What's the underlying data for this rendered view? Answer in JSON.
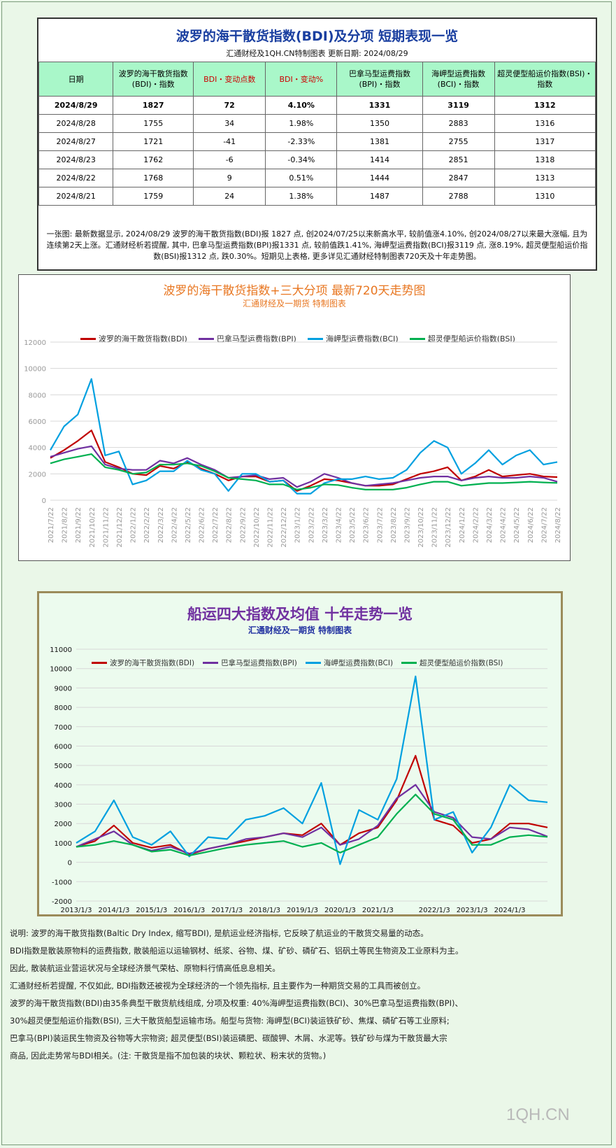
{
  "table": {
    "title": "波罗的海干散货指数(BDI)及分项 短期表现一览",
    "subtitle": "汇通财经及1QH.CN特制图表     更新日期: 2024/08/29",
    "headers": [
      "日期",
      "波罗的海干散货指数(BDI)・指数",
      "BDI・变动点数",
      "BDI・变动%",
      "巴拿马型运费指数(BPI)・指数",
      "海岬型运费指数(BCI)・指数",
      "超灵便型船运价指数(BSI)・指数"
    ],
    "rows": [
      [
        "2024/8/29",
        "1827",
        "72",
        "4.10%",
        "1331",
        "3119",
        "1312"
      ],
      [
        "2024/8/28",
        "1755",
        "34",
        "1.98%",
        "1350",
        "2883",
        "1316"
      ],
      [
        "2024/8/27",
        "1721",
        "-41",
        "-2.33%",
        "1381",
        "2755",
        "1317"
      ],
      [
        "2024/8/23",
        "1762",
        "-6",
        "-0.34%",
        "1414",
        "2851",
        "1318"
      ],
      [
        "2024/8/22",
        "1768",
        "9",
        "0.51%",
        "1444",
        "2847",
        "1313"
      ],
      [
        "2024/8/21",
        "1759",
        "24",
        "1.38%",
        "1487",
        "2788",
        "1310"
      ]
    ],
    "note": "一张图: 最新数据显示, 2024/08/29 波罗的海干散货指数(BDI)报 1827 点, 创2024/07/25以来新高水平, 较前值涨4.10%, 创2024/08/27以来最大涨幅, 且为连续第2天上涨。汇通财经析若提醒, 其中, 巴拿马型运费指数(BPI)报1331 点, 较前值跌1.41%, 海岬型运费指数(BCI)报3119 点, 涨8.19%, 超灵便型船运价指数(BSI)报1312 点, 跌0.30%。短期见上表格, 更多详见汇通财经特制图表720天及十年走势图。"
  },
  "chart_data": [
    {
      "type": "line",
      "title": "波罗的海干散货指数+三大分项 最新720天走势图",
      "subtitle": "汇通财经及一期货 特制图表",
      "x": [
        "2021/7/22",
        "2021/8/22",
        "2021/9/22",
        "2021/10/22",
        "2021/11/22",
        "2021/12/22",
        "2022/1/22",
        "2022/2/22",
        "2022/3/22",
        "2022/4/22",
        "2022/5/22",
        "2022/6/22",
        "2022/7/22",
        "2022/8/22",
        "2022/9/22",
        "2022/10/22",
        "2022/11/22",
        "2022/12/22",
        "2023/1/22",
        "2023/2/22",
        "2023/3/22",
        "2023/4/22",
        "2023/5/22",
        "2023/6/22",
        "2023/7/22",
        "2023/8/22",
        "2023/9/22",
        "2023/10/22",
        "2023/11/22",
        "2023/12/22",
        "2024/1/22",
        "2024/2/22",
        "2024/3/22",
        "2024/4/22",
        "2024/5/22",
        "2024/6/22",
        "2024/7/22",
        "2024/8/22"
      ],
      "ylim": [
        0,
        12000
      ],
      "yticks": [
        "0",
        "2000",
        "4000",
        "6000",
        "8000",
        "10000",
        "12000"
      ],
      "series": [
        {
          "name": "波罗的海干散货指数(BDI)",
          "color": "#c00000",
          "values": [
            3200,
            3800,
            4500,
            5300,
            2900,
            2500,
            2000,
            1900,
            2600,
            2400,
            2900,
            2400,
            2000,
            1500,
            1800,
            1800,
            1400,
            1500,
            700,
            1100,
            1600,
            1500,
            1300,
            1100,
            1100,
            1200,
            1600,
            2000,
            2200,
            2500,
            1500,
            1800,
            2300,
            1800,
            1900,
            2000,
            1800,
            1750
          ]
        },
        {
          "name": "巴拿马型运费指数(BPI)",
          "color": "#7030a0",
          "values": [
            3300,
            3600,
            3900,
            4100,
            2700,
            2400,
            2300,
            2300,
            3000,
            2800,
            3200,
            2700,
            2300,
            1700,
            1800,
            1900,
            1600,
            1700,
            1000,
            1400,
            2000,
            1700,
            1300,
            1100,
            1200,
            1300,
            1500,
            1700,
            1800,
            1800,
            1500,
            1700,
            1800,
            1700,
            1700,
            1800,
            1700,
            1400
          ]
        },
        {
          "name": "海岬型运费指数(BCI)",
          "color": "#00a0e0",
          "values": [
            3800,
            5600,
            6500,
            9200,
            3400,
            3700,
            1200,
            1500,
            2200,
            2200,
            3000,
            2300,
            2000,
            700,
            2000,
            2000,
            1400,
            1500,
            500,
            500,
            1300,
            1600,
            1600,
            1800,
            1600,
            1700,
            2300,
            3600,
            4500,
            4000,
            2000,
            2800,
            3800,
            2700,
            3400,
            3800,
            2700,
            2900
          ]
        },
        {
          "name": "超灵便型船运价指数(BSI)",
          "color": "#00b050",
          "values": [
            2800,
            3100,
            3300,
            3500,
            2500,
            2300,
            2000,
            2100,
            2700,
            2700,
            2800,
            2600,
            2200,
            1700,
            1600,
            1500,
            1200,
            1200,
            800,
            950,
            1200,
            1150,
            950,
            800,
            800,
            800,
            950,
            1200,
            1400,
            1400,
            1100,
            1200,
            1300,
            1300,
            1350,
            1400,
            1350,
            1310
          ]
        }
      ]
    },
    {
      "type": "line",
      "title": "船运四大指数及均值 十年走势一览",
      "subtitle": "汇通财经及一期货 特制图表",
      "x": [
        "2013/1/3",
        "2013/7/3",
        "2014/1/3",
        "2014/7/3",
        "2015/1/3",
        "2015/7/3",
        "2016/1/3",
        "2016/7/3",
        "2017/1/3",
        "2017/7/3",
        "2018/1/3",
        "2018/7/3",
        "2019/1/3",
        "2019/7/3",
        "2020/1/3",
        "2020/7/3",
        "2021/1/3",
        "2021/7/3",
        "2021/10/3",
        "2022/1/3",
        "2022/7/3",
        "2023/1/3",
        "2023/7/3",
        "2024/1/3",
        "2024/7/3",
        "2024/8/29"
      ],
      "xticks": [
        "2013/1/3",
        "2014/1/3",
        "2015/1/3",
        "2016/1/3",
        "2017/1/3",
        "2018/1/3",
        "2019/1/3",
        "2020/1/3",
        "2021/1/3",
        "2022/1/3",
        "2023/1/3",
        "2024/1/3"
      ],
      "ylim": [
        -2000,
        11000
      ],
      "yticks": [
        "-2000",
        "-1000",
        "0",
        "1000",
        "2000",
        "3000",
        "4000",
        "5000",
        "6000",
        "7000",
        "8000",
        "9000",
        "10000",
        "11000"
      ],
      "series": [
        {
          "name": "波罗的海干散货指数(BDI)",
          "color": "#c00000",
          "values": [
            800,
            1100,
            1900,
            1000,
            750,
            900,
            400,
            700,
            900,
            1100,
            1300,
            1500,
            1400,
            2000,
            900,
            1500,
            1800,
            3200,
            5500,
            2200,
            1900,
            1000,
            1200,
            2000,
            2000,
            1800
          ]
        },
        {
          "name": "巴拿马型运费指数(BPI)",
          "color": "#7030a0",
          "values": [
            800,
            1200,
            1600,
            900,
            600,
            800,
            450,
            700,
            900,
            1200,
            1300,
            1500,
            1300,
            1800,
            900,
            1200,
            1900,
            3300,
            4000,
            2600,
            2300,
            1300,
            1200,
            1800,
            1700,
            1330
          ]
        },
        {
          "name": "海岬型运费指数(BCI)",
          "color": "#00a0e0",
          "values": [
            1000,
            1600,
            3200,
            1300,
            900,
            1600,
            300,
            1300,
            1200,
            2200,
            2400,
            2800,
            2000,
            4100,
            -100,
            2700,
            2200,
            4300,
            9600,
            2200,
            2600,
            500,
            1800,
            4000,
            3200,
            3100
          ]
        },
        {
          "name": "超灵便型船运价指数(BSI)",
          "color": "#00b050",
          "values": [
            800,
            900,
            1100,
            900,
            550,
            650,
            350,
            550,
            750,
            900,
            1000,
            1100,
            800,
            1000,
            500,
            900,
            1300,
            2500,
            3500,
            2500,
            2200,
            900,
            900,
            1300,
            1400,
            1310
          ]
        }
      ]
    }
  ],
  "explain": [
    "说明: 波罗的海干散货指数(Baltic Dry Index, 缩写BDI), 是航运业经济指标, 它反映了航运业的干散货交易量的动态。",
    "BDI指数是散装原物料的运费指数, 散装船运以运输钢材、纸浆、谷物、煤、矿砂、磷矿石、铝矾土等民生物资及工业原料为主。",
    "因此, 散装航运业营运状况与全球经济景气荣枯、原物料行情高低息息相关。",
    "汇通财经析若提醒, 不仅如此, BDI指数还被视为全球经济的一个领先指标, 且主要作为一种期货交易的工具而被创立。",
    "波罗的海干散货指数(BDI)由35条典型干散货航线组成, 分项及权重: 40%海岬型运费指数(BCI)、30%巴拿马型运费指数(BPI)、",
    "30%超灵便型船运价指数(BSI), 三大干散货船型运输市场。船型与货物: 海岬型(BCI)装运铁矿砂、焦煤、磷矿石等工业原料;",
    "巴拿马(BPI)装运民生物资及谷物等大宗物资; 超灵便型(BSI)装运磷肥、碳酸钾、木屑、水泥等。铁矿砂与煤为干散货最大宗",
    "商品, 因此走势常与BDI相关。(注: 干散货是指不加包装的块状、颗粒状、粉末状的货物。)"
  ],
  "logo": "1QH.CN"
}
